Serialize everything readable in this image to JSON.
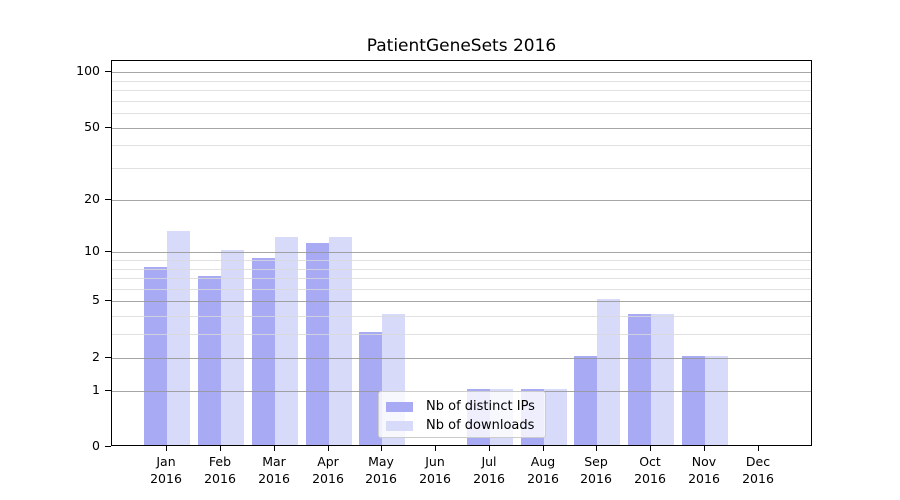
{
  "title": "PatientGeneSets 2016",
  "legend": {
    "items": [
      {
        "key": "ips",
        "label": "Nb of distinct IPs"
      },
      {
        "key": "downloads",
        "label": "Nb of downloads"
      }
    ]
  },
  "colors": {
    "ips": "#a8aaf3",
    "downloads": "#d8daf9",
    "grid_major": "#b0b0b0",
    "grid_minor": "#e2e2e2",
    "axis": "#000000",
    "legend_border": "#cccccc"
  },
  "chart_data": {
    "type": "bar",
    "title": "PatientGeneSets 2016",
    "x_months": [
      "Jan",
      "Feb",
      "Mar",
      "Apr",
      "May",
      "Jun",
      "Jul",
      "Aug",
      "Sep",
      "Oct",
      "Nov",
      "Dec"
    ],
    "x_year": "2016",
    "series": [
      {
        "key": "ips",
        "name": "Nb of distinct IPs",
        "values": [
          8,
          7,
          9,
          11,
          3,
          0,
          1,
          1,
          2,
          4,
          2,
          0
        ]
      },
      {
        "key": "downloads",
        "name": "Nb of downloads",
        "values": [
          13,
          10,
          12,
          12,
          4,
          0,
          1,
          1,
          5,
          4,
          2,
          0
        ]
      }
    ],
    "y_scale": "log10(1+v)",
    "y_ticks": [
      0,
      1,
      2,
      5,
      10,
      20,
      50,
      100
    ],
    "y_minor_gridlines": [
      3,
      4,
      6,
      7,
      8,
      9,
      30,
      40,
      60,
      70,
      80,
      90
    ],
    "ylim": [
      0,
      115
    ],
    "grid": "on",
    "legend_position": "lower center"
  }
}
